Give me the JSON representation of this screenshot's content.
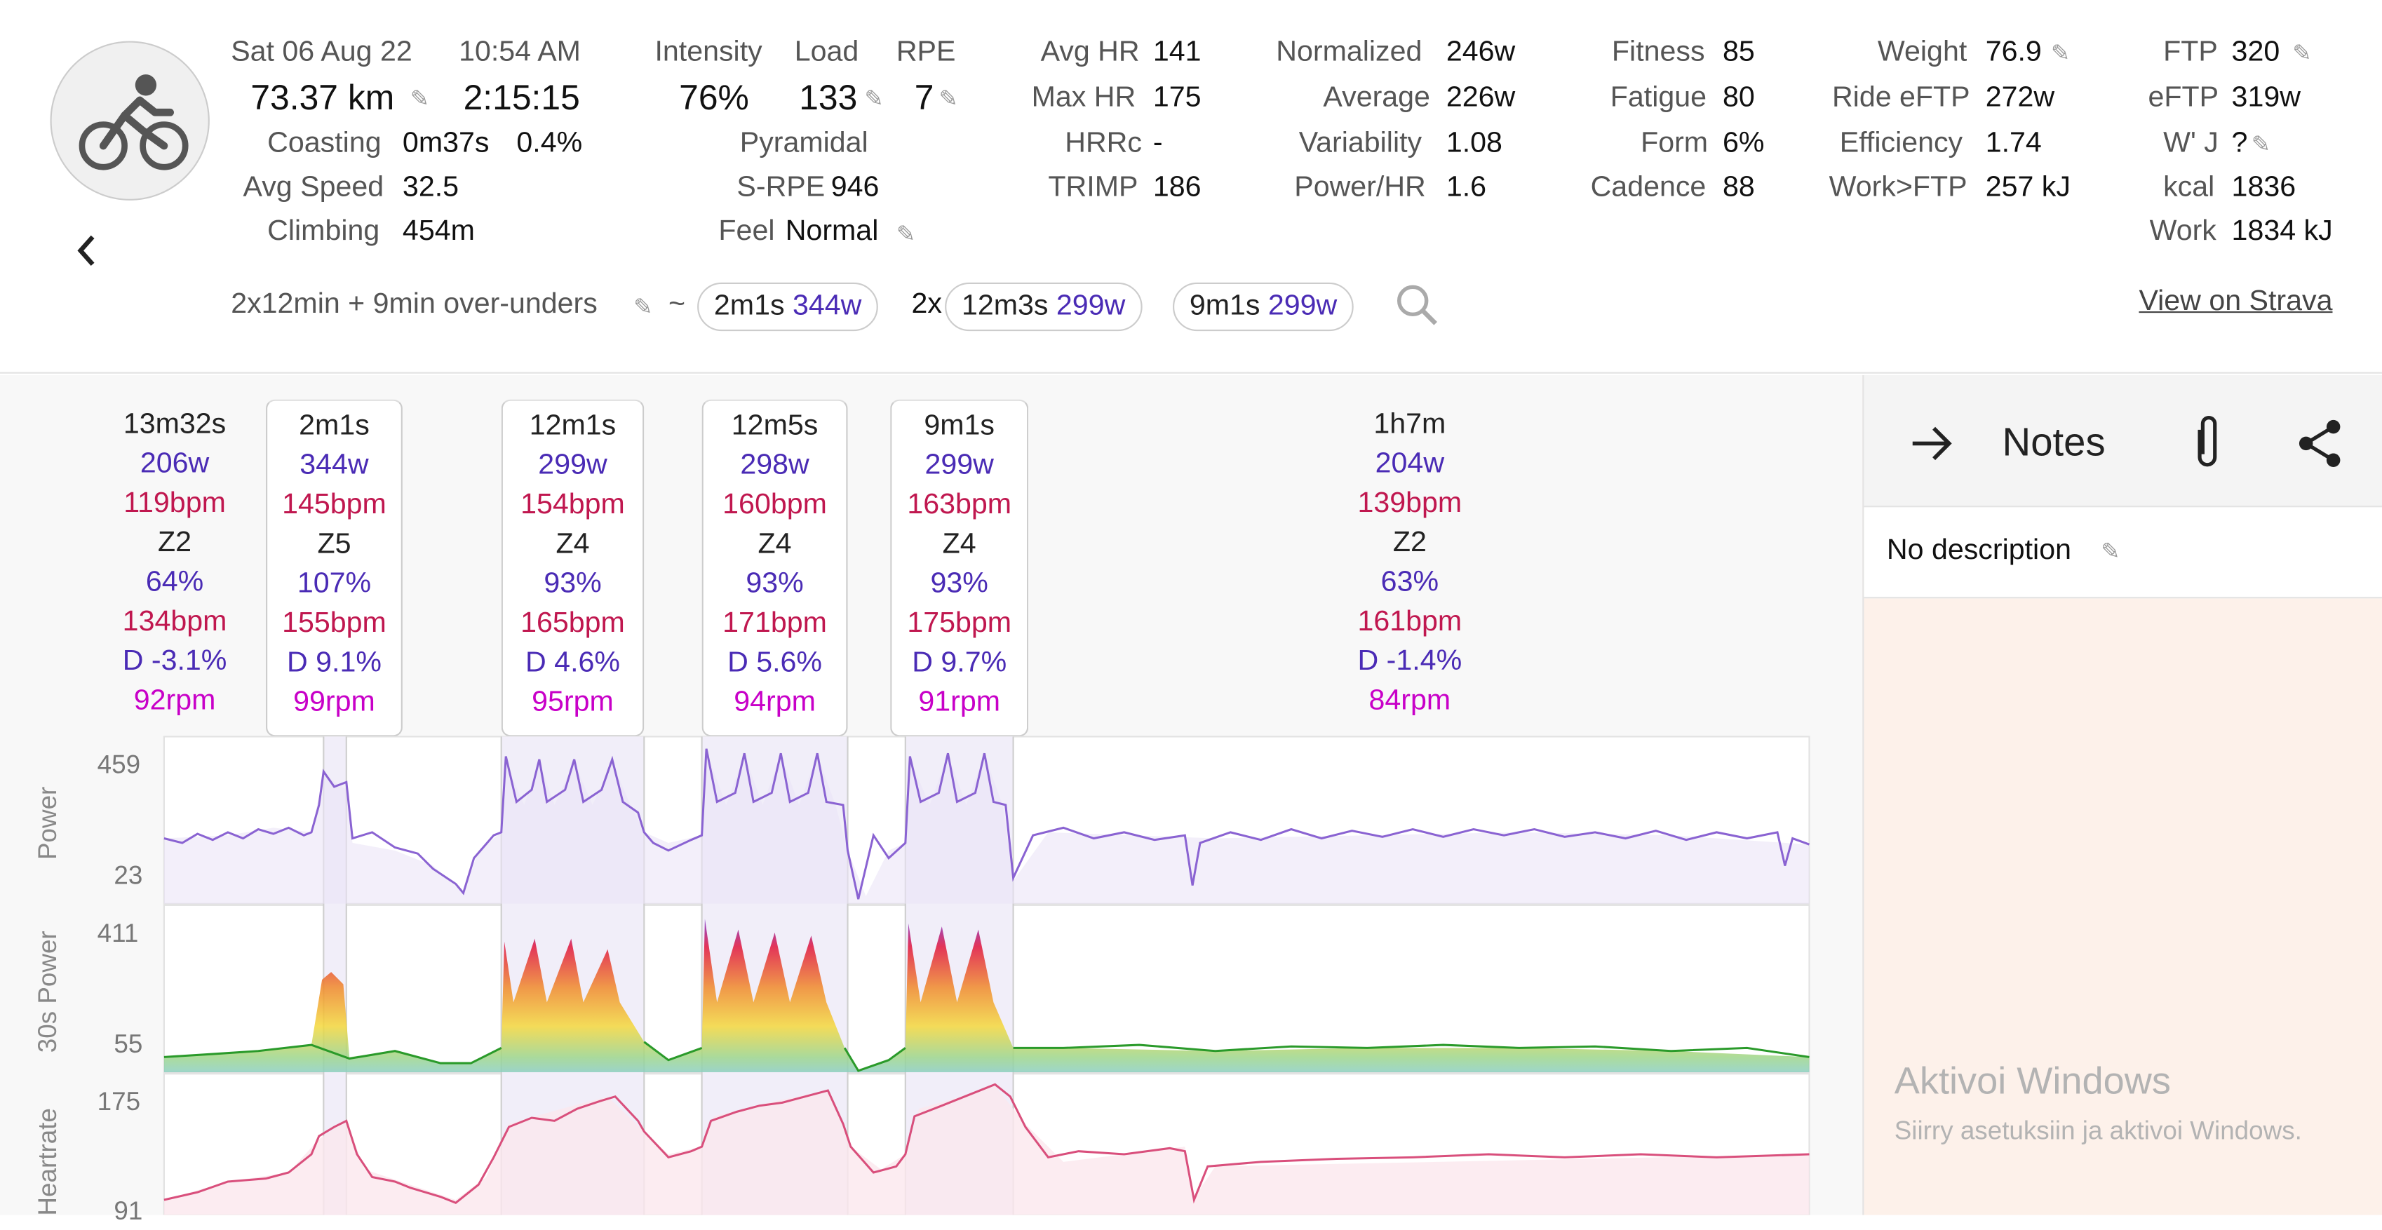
{
  "header": {
    "date": "Sat 06 Aug 22",
    "time": "10:54 AM",
    "distance": "73.37 km",
    "duration": "2:15:15",
    "coasting_label": "Coasting",
    "coasting_value": "0m37s",
    "coasting_pct": "0.4%",
    "avg_speed_label": "Avg Speed",
    "avg_speed_value": "32.5",
    "climbing_label": "Climbing",
    "climbing_value": "454m",
    "intensity_label": "Intensity",
    "intensity_value": "76%",
    "load_label": "Load",
    "load_value": "133",
    "rpe_label": "RPE",
    "rpe_value": "7",
    "pyramidal": "Pyramidal",
    "srpe_label": "S-RPE",
    "srpe_value": "946",
    "feel_label": "Feel",
    "feel_value": "Normal",
    "avg_hr_label": "Avg HR",
    "avg_hr_value": "141",
    "max_hr_label": "Max HR",
    "max_hr_value": "175",
    "hrrc_label": "HRRc",
    "hrrc_value": "-",
    "trimp_label": "TRIMP",
    "trimp_value": "186",
    "normalized_label": "Normalized",
    "normalized_value": "246w",
    "average_label": "Average",
    "average_value": "226w",
    "variability_label": "Variability",
    "variability_value": "1.08",
    "powerhr_label": "Power/HR",
    "powerhr_value": "1.6",
    "fitness_label": "Fitness",
    "fitness_value": "85",
    "fatigue_label": "Fatigue",
    "fatigue_value": "80",
    "form_label": "Form",
    "form_value": "6%",
    "cadence_label": "Cadence",
    "cadence_value": "88",
    "weight_label": "Weight",
    "weight_value": "76.9",
    "ride_eftp_label": "Ride eFTP",
    "ride_eftp_value": "272w",
    "efficiency_label": "Efficiency",
    "efficiency_value": "1.74",
    "workftp_label": "Work>FTP",
    "workftp_value": "257 kJ",
    "ftp_label": "FTP",
    "ftp_value": "320",
    "eftp_label": "eFTP",
    "eftp_value": "319w",
    "wj_label": "W' J",
    "wj_value": "?",
    "kcal_label": "kcal",
    "kcal_value": "1836",
    "work_label": "Work",
    "work_value": "1834 kJ",
    "workout_name": "2x12min + 9min over-unders",
    "tilde": "~",
    "chip1_time": "2m1s",
    "chip1_watts": "344w",
    "chip2_prefix": "2x",
    "chip2_time": "12m3s",
    "chip2_watts": "299w",
    "chip3_time": "9m1s",
    "chip3_watts": "299w",
    "strava_link": "View on Strava"
  },
  "intervals": [
    {
      "time": "13m32s",
      "power": "206w",
      "hr": "119bpm",
      "zone": "Z2",
      "pct": "64%",
      "maxhr": "134bpm",
      "decoupling": "D -3.1%",
      "cadence": "92rpm"
    },
    {
      "time": "2m1s",
      "power": "344w",
      "hr": "145bpm",
      "zone": "Z5",
      "pct": "107%",
      "maxhr": "155bpm",
      "decoupling": "D 9.1%",
      "cadence": "99rpm"
    },
    {
      "time": "12m1s",
      "power": "299w",
      "hr": "154bpm",
      "zone": "Z4",
      "pct": "93%",
      "maxhr": "165bpm",
      "decoupling": "D 4.6%",
      "cadence": "95rpm"
    },
    {
      "time": "12m5s",
      "power": "298w",
      "hr": "160bpm",
      "zone": "Z4",
      "pct": "93%",
      "maxhr": "171bpm",
      "decoupling": "D 5.6%",
      "cadence": "94rpm"
    },
    {
      "time": "9m1s",
      "power": "299w",
      "hr": "163bpm",
      "zone": "Z4",
      "pct": "93%",
      "maxhr": "175bpm",
      "decoupling": "D 9.7%",
      "cadence": "91rpm"
    },
    {
      "time": "1h7m",
      "power": "204w",
      "hr": "139bpm",
      "zone": "Z2",
      "pct": "63%",
      "maxhr": "161bpm",
      "decoupling": "D -1.4%",
      "cadence": "84rpm"
    }
  ],
  "charts": {
    "power_label": "Power",
    "power_max": "459",
    "power_min": "23",
    "p30_label": "30s Power",
    "p30_max": "411",
    "p30_min": "55",
    "hr_label": "Heartrate",
    "hr_max": "175",
    "hr_min": "91"
  },
  "notes": {
    "title": "Notes",
    "description": "No description"
  },
  "watermark": {
    "line1": "Aktivoi Windows",
    "line2": "Siirry asetuksiin ja aktivoi Windows."
  },
  "colors": {
    "power_line": "#8a63d2",
    "hr_line": "#d94f7c",
    "accent": "#4a2bb5",
    "hr_text": "#c0174f",
    "cadence_text": "#c800c8"
  },
  "icons": {
    "activity": "cyclist-icon",
    "back": "chevron-left-icon",
    "search": "search-icon",
    "arrow": "arrow-right-icon",
    "attach": "paperclip-icon",
    "share": "share-icon",
    "edit": "pencil-icon"
  }
}
